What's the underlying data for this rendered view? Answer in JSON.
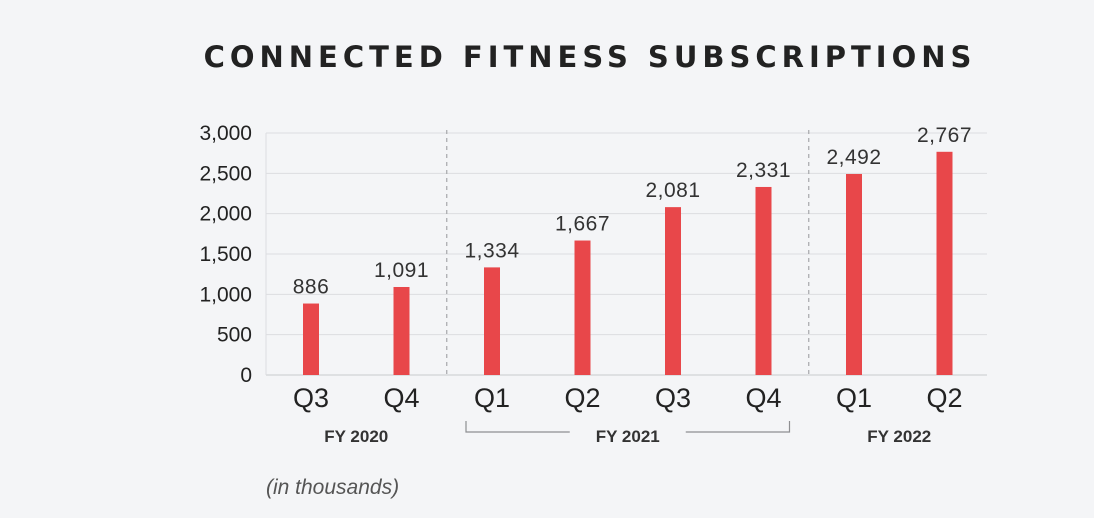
{
  "chart_data": {
    "type": "bar",
    "title": "CONNECTED FITNESS SUBSCRIPTIONS",
    "categories": [
      "Q3",
      "Q4",
      "Q1",
      "Q2",
      "Q3",
      "Q4",
      "Q1",
      "Q2"
    ],
    "values": [
      886,
      1091,
      1334,
      1667,
      2081,
      2331,
      2492,
      2767
    ],
    "value_labels": [
      "886",
      "1,091",
      "1,334",
      "1,667",
      "2,081",
      "2,331",
      "2,492",
      "2,767"
    ],
    "groups": [
      {
        "label": "FY 2020",
        "start": 0,
        "end": 1
      },
      {
        "label": "FY 2021",
        "start": 2,
        "end": 5
      },
      {
        "label": "FY 2022",
        "start": 6,
        "end": 7
      }
    ],
    "yticks": [
      0,
      500,
      1000,
      1500,
      2000,
      2500,
      3000
    ],
    "ytick_labels": [
      "0",
      "500",
      "1,000",
      "1,500",
      "2,000",
      "2,500",
      "3,000"
    ],
    "ylim": [
      0,
      3000
    ],
    "xlabel": "",
    "ylabel": "",
    "note": "(in thousands)",
    "grid": true,
    "bar_color": "#e8474a",
    "grid_color": "#dcdde0"
  }
}
